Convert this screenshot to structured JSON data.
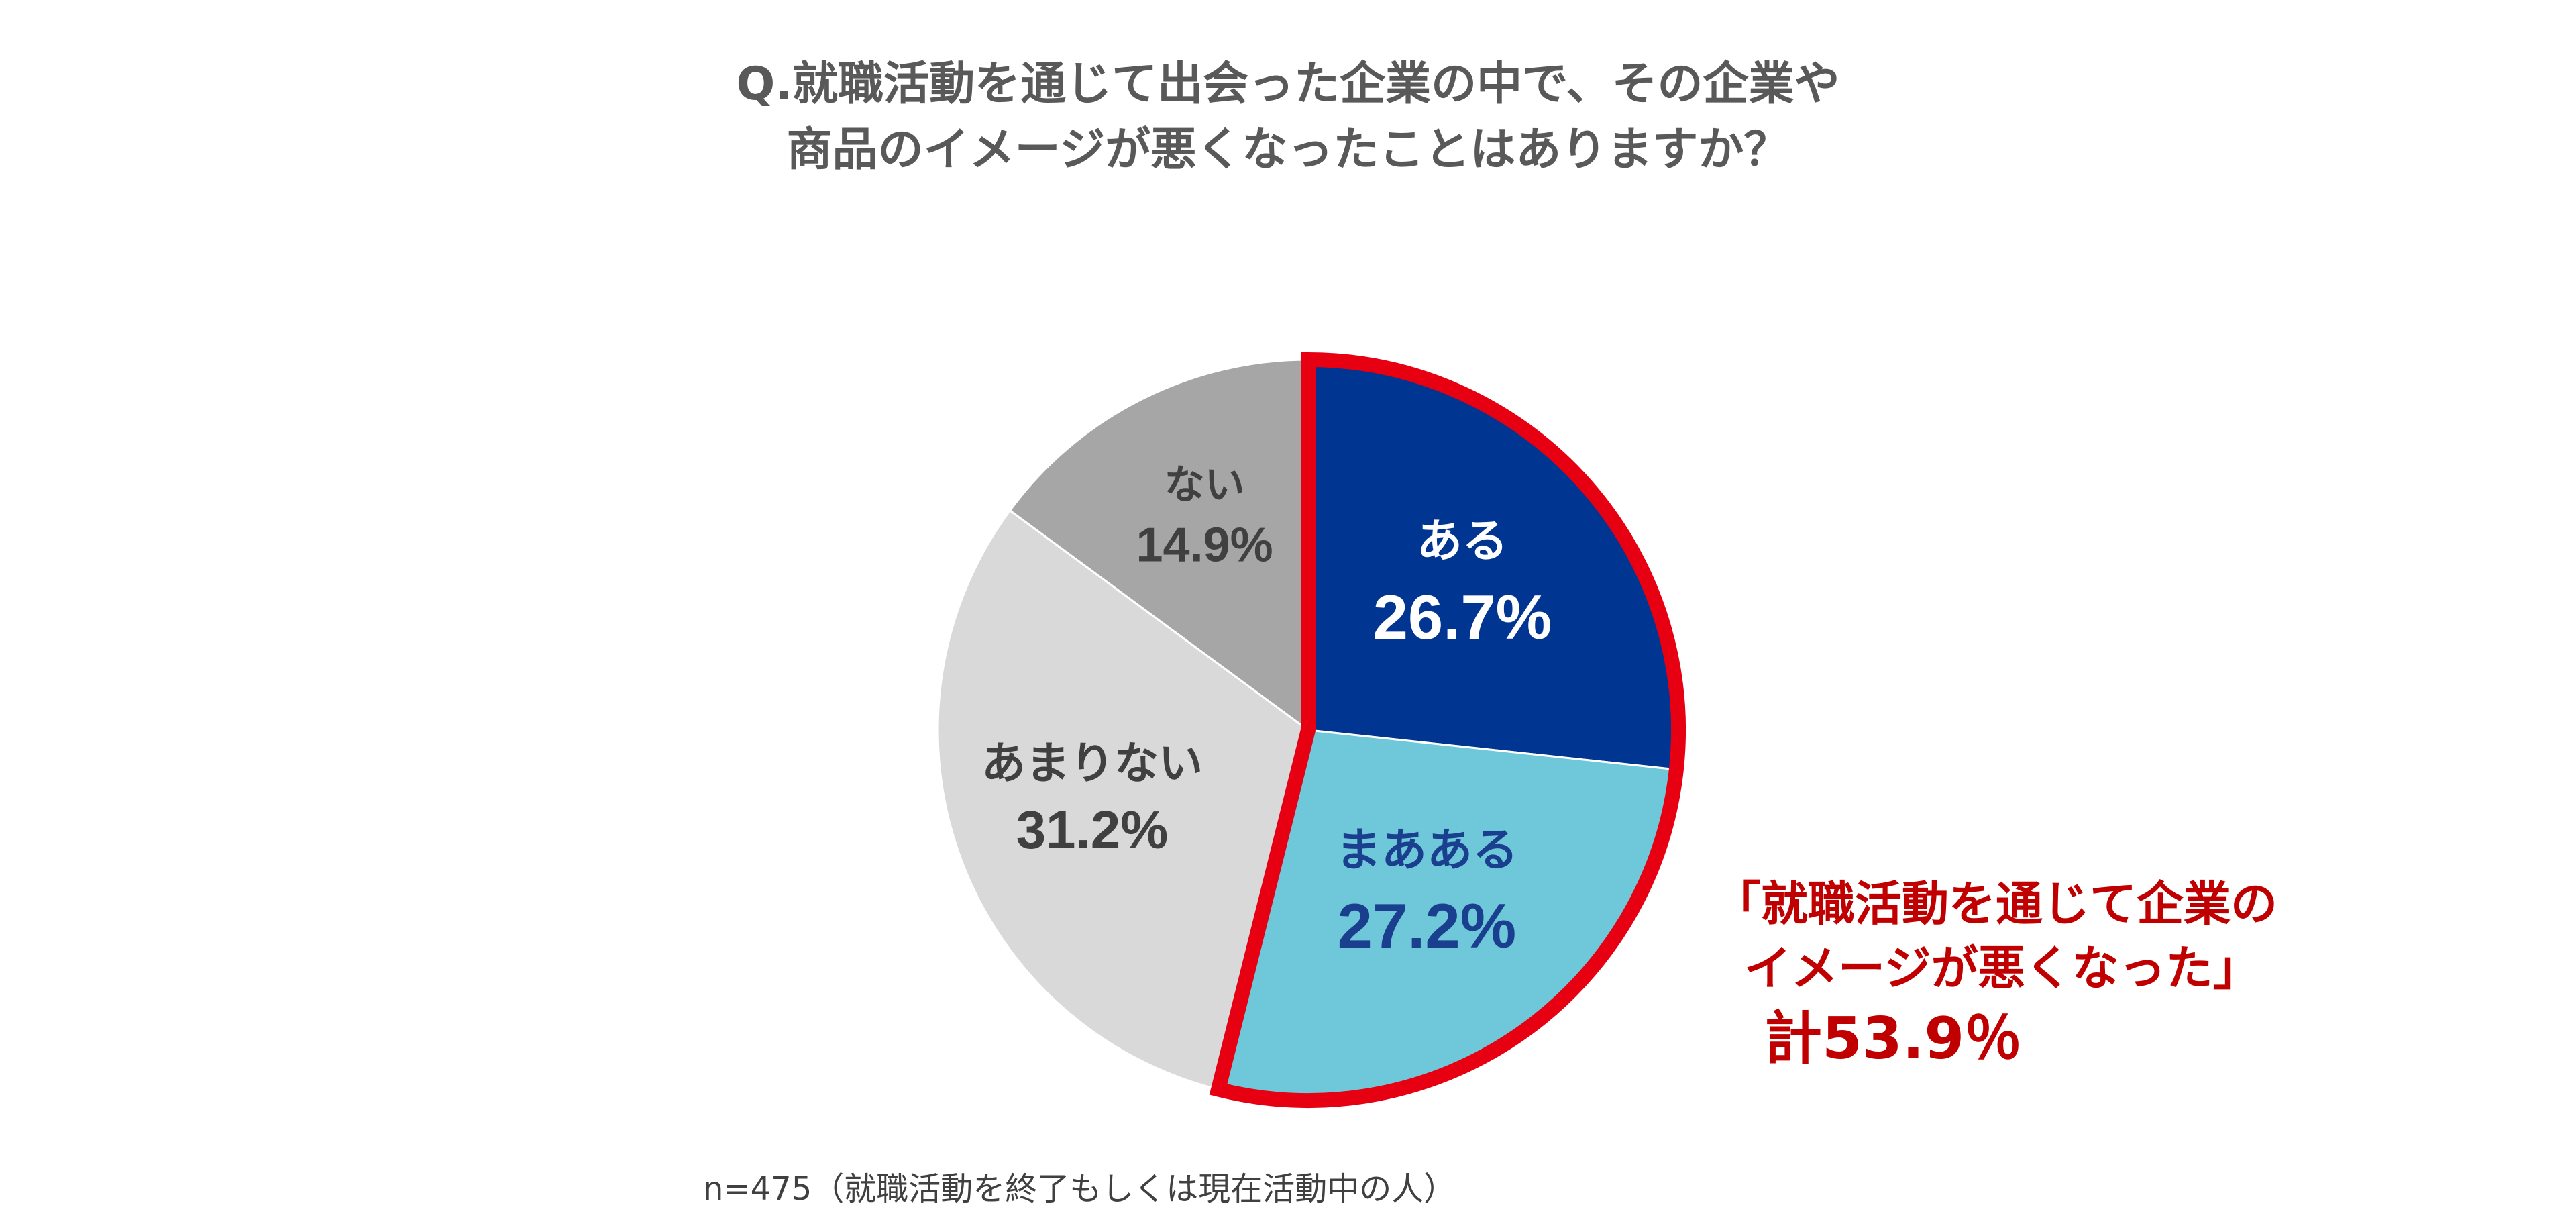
{
  "title": {
    "line1": "Q.就職活動を通じて出会った企業の中で、その企業や",
    "line2": "商品のイメージが悪くなったことはありますか？"
  },
  "chart_data": {
    "type": "pie",
    "title": "Q.就職活動を通じて出会った企業の中で、その企業や商品のイメージが悪くなったことはありますか？",
    "start": "12 o'clock",
    "direction": "clockwise",
    "slices": [
      {
        "label": "ある",
        "value": 26.7,
        "value_label": "26.7%",
        "color": "#003591",
        "text_color": "#ffffff",
        "highlighted": true
      },
      {
        "label": "まあある",
        "value": 27.2,
        "value_label": "27.2%",
        "color": "#6ec8d9",
        "text_color": "#1a3f8f",
        "highlighted": true
      },
      {
        "label": "あまりない",
        "value": 31.2,
        "value_label": "31.2%",
        "color": "#d9d9d9",
        "text_color": "#404040",
        "highlighted": false
      },
      {
        "label": "ない",
        "value": 14.9,
        "value_label": "14.9%",
        "color": "#a6a6a6",
        "text_color": "#404040",
        "highlighted": false
      }
    ],
    "highlight_color": "#e60012",
    "annotation": {
      "line1": "「就職活動を通じて企業の",
      "line2": "イメージが悪くなった」",
      "total": "計53.9％",
      "color": "#c00000"
    }
  },
  "footnote": "n=475（就職活動を終了もしくは現在活動中の人）"
}
